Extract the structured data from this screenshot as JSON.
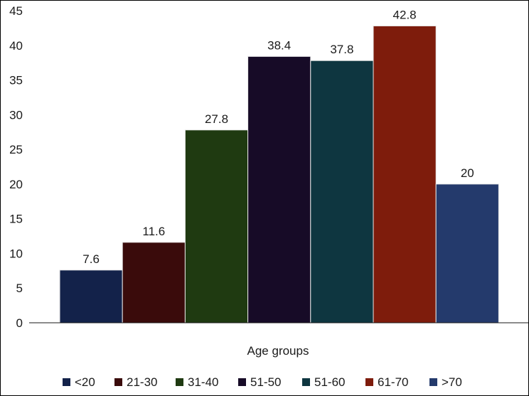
{
  "chart_data": {
    "type": "bar",
    "categories": [
      "<20",
      "21-30",
      "31-40",
      "51-50",
      "51-60",
      "61-70",
      ">70"
    ],
    "values": [
      7.6,
      11.6,
      27.8,
      38.4,
      37.8,
      42.8,
      20
    ],
    "data_labels": [
      "7.6",
      "11.6",
      "27.8",
      "38.4",
      "37.8",
      "42.8",
      "20"
    ],
    "colors": [
      "#13224a",
      "#3a0b0b",
      "#1f3a11",
      "#170b27",
      "#0e3640",
      "#7e1c0c",
      "#243a6c"
    ],
    "title": "",
    "xlabel": "Age groups",
    "ylabel": "",
    "ylim": [
      0,
      45
    ],
    "yticks": [
      0,
      5,
      10,
      15,
      20,
      25,
      30,
      35,
      40,
      45
    ],
    "grid": false,
    "legend_position": "bottom",
    "legend": [
      "<20",
      "21-30",
      "31-40",
      "51-50",
      "51-60",
      "61-70",
      ">70"
    ]
  }
}
